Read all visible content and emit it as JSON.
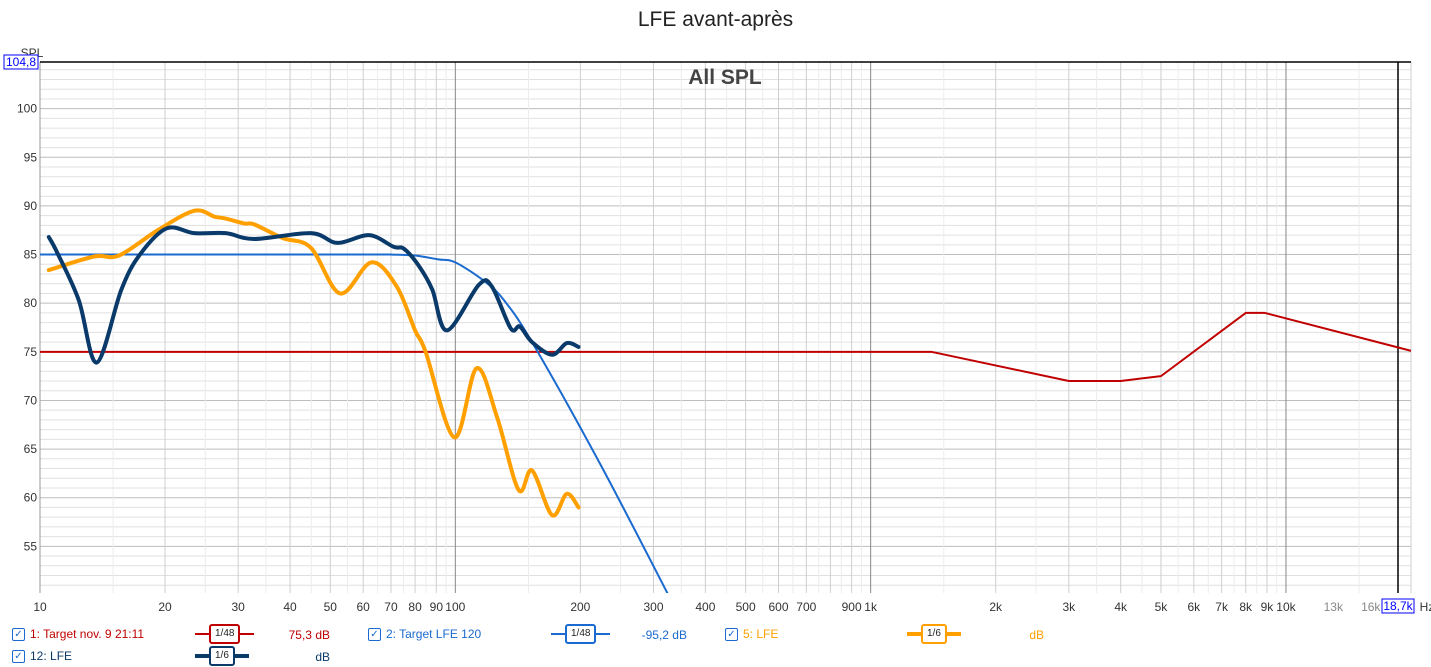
{
  "title": "LFE avant-après",
  "chart_data": {
    "type": "line",
    "title": "LFE avant-après",
    "subtitle": "All SPL",
    "xlabel": "Hz",
    "ylabel": "SPL",
    "xscale": "log",
    "xlim": [
      10,
      20000
    ],
    "ylim": [
      50.2,
      104.8
    ],
    "cursor": {
      "x_label": "18,7k",
      "y_label": "104,8"
    },
    "yticks": [
      55,
      60,
      65,
      70,
      75,
      80,
      85,
      90,
      95,
      100
    ],
    "xticks": [
      {
        "v": 10,
        "l": "10"
      },
      {
        "v": 20,
        "l": "20"
      },
      {
        "v": 30,
        "l": "30"
      },
      {
        "v": 40,
        "l": "40"
      },
      {
        "v": 50,
        "l": "50"
      },
      {
        "v": 60,
        "l": "60"
      },
      {
        "v": 70,
        "l": "70"
      },
      {
        "v": 80,
        "l": "80"
      },
      {
        "v": 90,
        "l": "90"
      },
      {
        "v": 100,
        "l": "100"
      },
      {
        "v": 200,
        "l": "200"
      },
      {
        "v": 300,
        "l": "300"
      },
      {
        "v": 400,
        "l": "400"
      },
      {
        "v": 500,
        "l": "500"
      },
      {
        "v": 600,
        "l": "600"
      },
      {
        "v": 700,
        "l": "700"
      },
      {
        "v": 900,
        "l": "900"
      },
      {
        "v": 1000,
        "l": "1k"
      },
      {
        "v": 2000,
        "l": "2k"
      },
      {
        "v": 3000,
        "l": "3k"
      },
      {
        "v": 4000,
        "l": "4k"
      },
      {
        "v": 5000,
        "l": "5k"
      },
      {
        "v": 6000,
        "l": "6k"
      },
      {
        "v": 7000,
        "l": "7k"
      },
      {
        "v": 8000,
        "l": "8k"
      },
      {
        "v": 9000,
        "l": "9k"
      },
      {
        "v": 10000,
        "l": "10k"
      },
      {
        "v": 13000,
        "l": "13k",
        "muted": true
      },
      {
        "v": 16000,
        "l": "16k",
        "muted": true
      }
    ],
    "grid": true,
    "series": [
      {
        "name": "1: Target nov. 9 21:11",
        "color": "#c00000",
        "width": 2,
        "smoothing": "1/48",
        "value": "75,3 dB",
        "smooth": false,
        "x": [
          10,
          1400,
          3000,
          4000,
          5000,
          8000,
          8900,
          20000
        ],
        "y": [
          75,
          75,
          72,
          72,
          72.5,
          79,
          79,
          75.1
        ]
      },
      {
        "name": "2: Target LFE 120",
        "color": "#1a6ad0",
        "width": 2,
        "smoothing": "1/48",
        "value": "-95,2 dB",
        "smooth": true,
        "x": [
          10,
          50,
          70,
          80,
          91,
          100,
          118,
          131,
          153,
          223,
          324
        ],
        "y": [
          85,
          85,
          85,
          84.9,
          84.5,
          84.2,
          82.2,
          80.3,
          76,
          63.5,
          50.2
        ]
      },
      {
        "name": "5: LFE",
        "color": "#ffa000",
        "width": 4,
        "smoothing": "1/6",
        "value": "dB",
        "smooth": true,
        "x": [
          10.5,
          13.5,
          15.5,
          19.2,
          23.5,
          26.3,
          28,
          31,
          32.8,
          38.4,
          44.9,
          52.8,
          62.8,
          72.3,
          80,
          84.8,
          99.5,
          112.5,
          126,
          142,
          153,
          171,
          185.5,
          198
        ],
        "y": [
          83.4,
          84.8,
          84.9,
          87.5,
          89.5,
          88.9,
          88.7,
          88.2,
          88.1,
          86.7,
          85.7,
          81,
          84.2,
          81.7,
          77.2,
          75,
          66.2,
          73.3,
          68.3,
          60.8,
          62.8,
          58.2,
          60.4,
          59
        ]
      },
      {
        "name": "12: LFE",
        "color": "#0a3a6a",
        "width": 4,
        "smoothing": "1/6",
        "value": "dB",
        "smooth": true,
        "x": [
          10.5,
          11,
          12.4,
          13.7,
          15.7,
          17.4,
          20.2,
          23.5,
          28,
          32.8,
          44.9,
          52,
          62,
          71,
          75.2,
          81.5,
          88,
          95.5,
          114,
          122.5,
          136,
          143,
          153,
          171,
          185.5,
          198
        ],
        "y": [
          86.8,
          85.2,
          80.3,
          73.9,
          81.4,
          85,
          87.7,
          87.2,
          87.2,
          86.6,
          87.2,
          86.2,
          87,
          85.8,
          85.6,
          83.9,
          81.4,
          77.2,
          81.9,
          81.7,
          77.4,
          77.6,
          76,
          74.7,
          75.9,
          75.5
        ]
      }
    ]
  }
}
